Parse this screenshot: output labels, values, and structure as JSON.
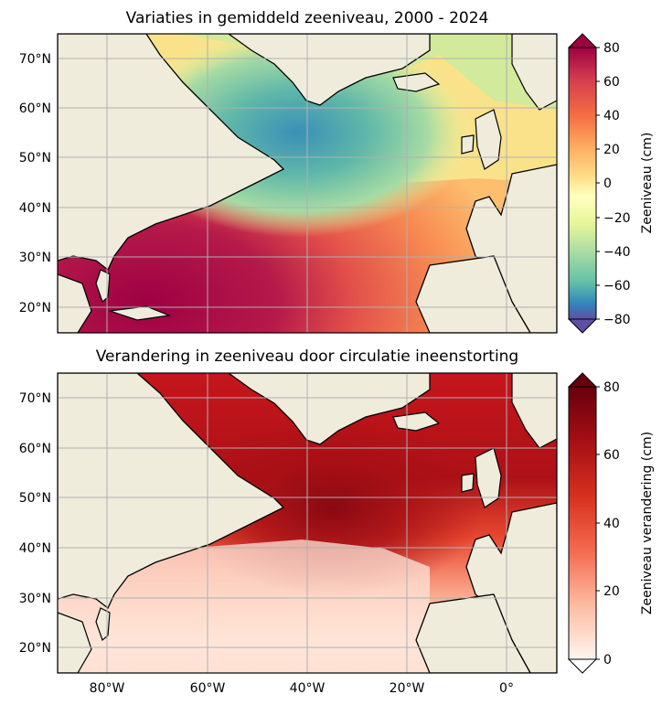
{
  "top_panel": {
    "title": "Variaties in gemiddeld zeeniveau, 2000 - 2024",
    "colorbar_label": "Zeeniveau (cm)",
    "colorbar_ticks": [
      "80",
      "60",
      "40",
      "20",
      "0",
      "−20",
      "−40",
      "−60",
      "−80"
    ],
    "colormap": "Spectral_r",
    "range": [
      -80,
      80
    ]
  },
  "bottom_panel": {
    "title": "Verandering in zeeniveau door circulatie ineenstorting",
    "colorbar_label": "Zeeniveau verandering (cm)",
    "colorbar_ticks": [
      "80",
      "60",
      "40",
      "20",
      "0"
    ],
    "colormap": "Reds",
    "range": [
      0,
      80
    ]
  },
  "lat_ticks": [
    "70°N",
    "60°N",
    "50°N",
    "40°N",
    "30°N",
    "20°N"
  ],
  "lon_ticks": [
    "80°W",
    "60°W",
    "40°W",
    "20°W",
    "0°"
  ],
  "colors": {
    "land": "#efecdc",
    "coast": "#000000",
    "grid": "#b0b0b0"
  }
}
